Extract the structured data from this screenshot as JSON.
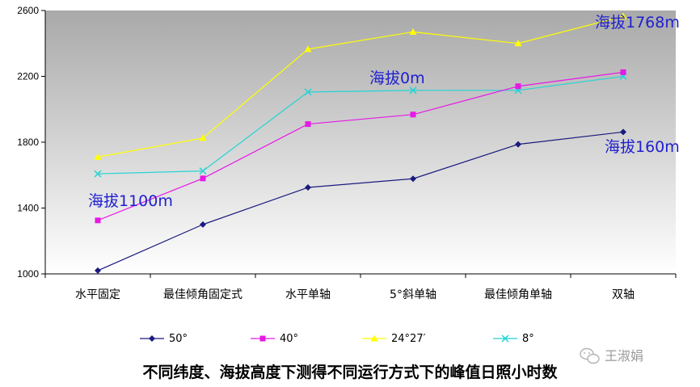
{
  "chart_data": {
    "type": "line",
    "title": "不同纬度、海拔高度下测得不同运行方式下的峰值日照小时数",
    "xlabel": "",
    "ylabel": "",
    "categories": [
      "水平固定",
      "最佳倾角固定式",
      "水平单轴",
      "5°斜单轴",
      "最佳倾角单轴",
      "双轴"
    ],
    "ylim": [
      1000,
      2600
    ],
    "yticks": [
      1000,
      1400,
      1800,
      2200,
      2600
    ],
    "grid": false,
    "legend_position": "bottom",
    "series": [
      {
        "name": "50°",
        "values": [
          1020,
          1300,
          1525,
          1578,
          1787,
          1862
        ],
        "color": "#1a1a80",
        "marker": "diamond"
      },
      {
        "name": "40°",
        "values": [
          1325,
          1580,
          1910,
          1968,
          2140,
          2225
        ],
        "color": "#e619e6",
        "marker": "square"
      },
      {
        "name": "24°27′",
        "values": [
          1710,
          1825,
          2365,
          2470,
          2400,
          2565
        ],
        "color": "#ffff00",
        "marker": "triangle"
      },
      {
        "name": "8°",
        "values": [
          1608,
          1625,
          2105,
          2115,
          2115,
          2200
        ],
        "color": "#22d4d4",
        "marker": "x"
      }
    ],
    "annotations": [
      {
        "text": "海拔1768m",
        "series": "24°27′"
      },
      {
        "text": "海拔0m",
        "series": "8°"
      },
      {
        "text": "海拔160m",
        "series": "50°"
      },
      {
        "text": "海拔1100m",
        "series": "40°"
      }
    ]
  },
  "watermark": {
    "text": "王淑娟",
    "icon": "wechat-icon"
  }
}
